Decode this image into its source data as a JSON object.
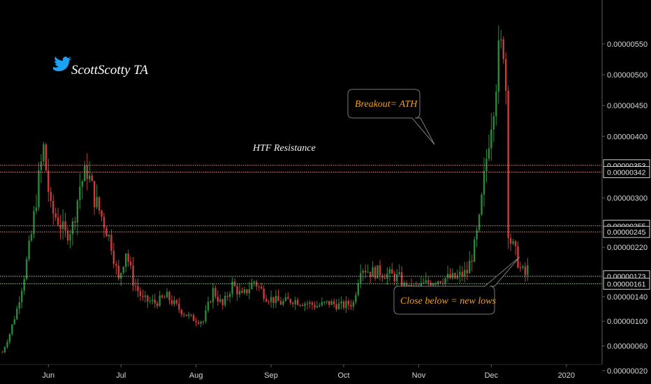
{
  "brand": {
    "handle": "ScottScotty TA",
    "icon": "bird-icon",
    "icon_color": "#1da1f2"
  },
  "colors": {
    "up": "#2a8a3a",
    "down": "#c83c3c",
    "resistance_line": "#e08a7a",
    "support_line": "#9fd0a0",
    "note": "#f0a020"
  },
  "chart_data": {
    "type": "candlestick",
    "title": "",
    "xlabel": "",
    "ylabel": "",
    "x_ticks": [
      "Jun",
      "Jul",
      "Aug",
      "Sep",
      "Oct",
      "Nov",
      "Dec",
      "2020"
    ],
    "y_ticks": [
      "0.00000020",
      "0.00000060",
      "0.00000100",
      "0.00000140",
      "0.00000220",
      "0.00000300",
      "0.00000400",
      "0.00000450",
      "0.00000500",
      "0.00000550"
    ],
    "ylim": [
      0.0,
      5.8e-06
    ],
    "price_levels": [
      {
        "value": "0.00000353",
        "kind": "resistance"
      },
      {
        "value": "0.00000342",
        "kind": "resistance"
      },
      {
        "value": "0.00000255",
        "kind": "resistance"
      },
      {
        "value": "0.00000245",
        "kind": "resistance"
      },
      {
        "value": "0.00000173",
        "kind": "support"
      },
      {
        "value": "0.00000161",
        "kind": "support"
      }
    ],
    "annotations": [
      {
        "text": "HTF Resistance",
        "style": "plain"
      },
      {
        "text": "Breakout= ATH",
        "style": "callout"
      },
      {
        "text": "Close below = new lows",
        "style": "callout"
      }
    ],
    "close_path": [
      [
        "2019-05-13",
        5e-07
      ],
      [
        "2019-05-16",
        8e-07
      ],
      [
        "2019-05-19",
        1.2e-06
      ],
      [
        "2019-05-22",
        1.75e-06
      ],
      [
        "2019-05-25",
        2.4e-06
      ],
      [
        "2019-05-28",
        3.3e-06
      ],
      [
        "2019-05-30",
        3.8e-06
      ],
      [
        "2019-06-02",
        2.8e-06
      ],
      [
        "2019-06-05",
        2.65e-06
      ],
      [
        "2019-06-08",
        2.4e-06
      ],
      [
        "2019-06-11",
        2.55e-06
      ],
      [
        "2019-06-14",
        3.2e-06
      ],
      [
        "2019-06-17",
        3.45e-06
      ],
      [
        "2019-06-20",
        3e-06
      ],
      [
        "2019-06-24",
        2.6e-06
      ],
      [
        "2019-06-27",
        2.25e-06
      ],
      [
        "2019-06-30",
        1.65e-06
      ],
      [
        "2019-07-03",
        2.15e-06
      ],
      [
        "2019-07-06",
        1.65e-06
      ],
      [
        "2019-07-10",
        1.35e-06
      ],
      [
        "2019-07-15",
        1.3e-06
      ],
      [
        "2019-07-20",
        1.4e-06
      ],
      [
        "2019-07-25",
        1.2e-06
      ],
      [
        "2019-07-30",
        1.05e-06
      ],
      [
        "2019-08-04",
        1e-06
      ],
      [
        "2019-08-08",
        1.5e-06
      ],
      [
        "2019-08-12",
        1.25e-06
      ],
      [
        "2019-08-16",
        1.6e-06
      ],
      [
        "2019-08-20",
        1.4e-06
      ],
      [
        "2019-08-25",
        1.65e-06
      ],
      [
        "2019-08-30",
        1.4e-06
      ],
      [
        "2019-09-05",
        1.3e-06
      ],
      [
        "2019-09-10",
        1.35e-06
      ],
      [
        "2019-09-15",
        1.3e-06
      ],
      [
        "2019-09-20",
        1.25e-06
      ],
      [
        "2019-09-25",
        1.3e-06
      ],
      [
        "2019-09-30",
        1.25e-06
      ],
      [
        "2019-10-05",
        1.3e-06
      ],
      [
        "2019-10-08",
        1.9e-06
      ],
      [
        "2019-10-12",
        1.8e-06
      ],
      [
        "2019-10-16",
        1.8e-06
      ],
      [
        "2019-10-20",
        1.75e-06
      ],
      [
        "2019-10-24",
        1.7e-06
      ],
      [
        "2019-10-27",
        1.5e-06
      ],
      [
        "2019-11-01",
        1.55e-06
      ],
      [
        "2019-11-06",
        1.65e-06
      ],
      [
        "2019-11-11",
        1.7e-06
      ],
      [
        "2019-11-16",
        1.7e-06
      ],
      [
        "2019-11-21",
        1.8e-06
      ],
      [
        "2019-11-24",
        2.2e-06
      ],
      [
        "2019-11-26",
        2.6e-06
      ],
      [
        "2019-11-28",
        3.3e-06
      ],
      [
        "2019-11-30",
        4e-06
      ],
      [
        "2019-12-02",
        4.6e-06
      ],
      [
        "2019-12-04",
        5.3e-06
      ],
      [
        "2019-12-06",
        5.5e-06
      ],
      [
        "2019-12-07",
        4.8e-06
      ],
      [
        "2019-12-08",
        2.5e-06
      ],
      [
        "2019-12-09",
        2.3e-06
      ],
      [
        "2019-12-11",
        2.1e-06
      ],
      [
        "2019-12-13",
        1.85e-06
      ],
      [
        "2019-12-15",
        1.75e-06
      ],
      [
        "2019-12-17",
        1.95e-06
      ]
    ]
  }
}
